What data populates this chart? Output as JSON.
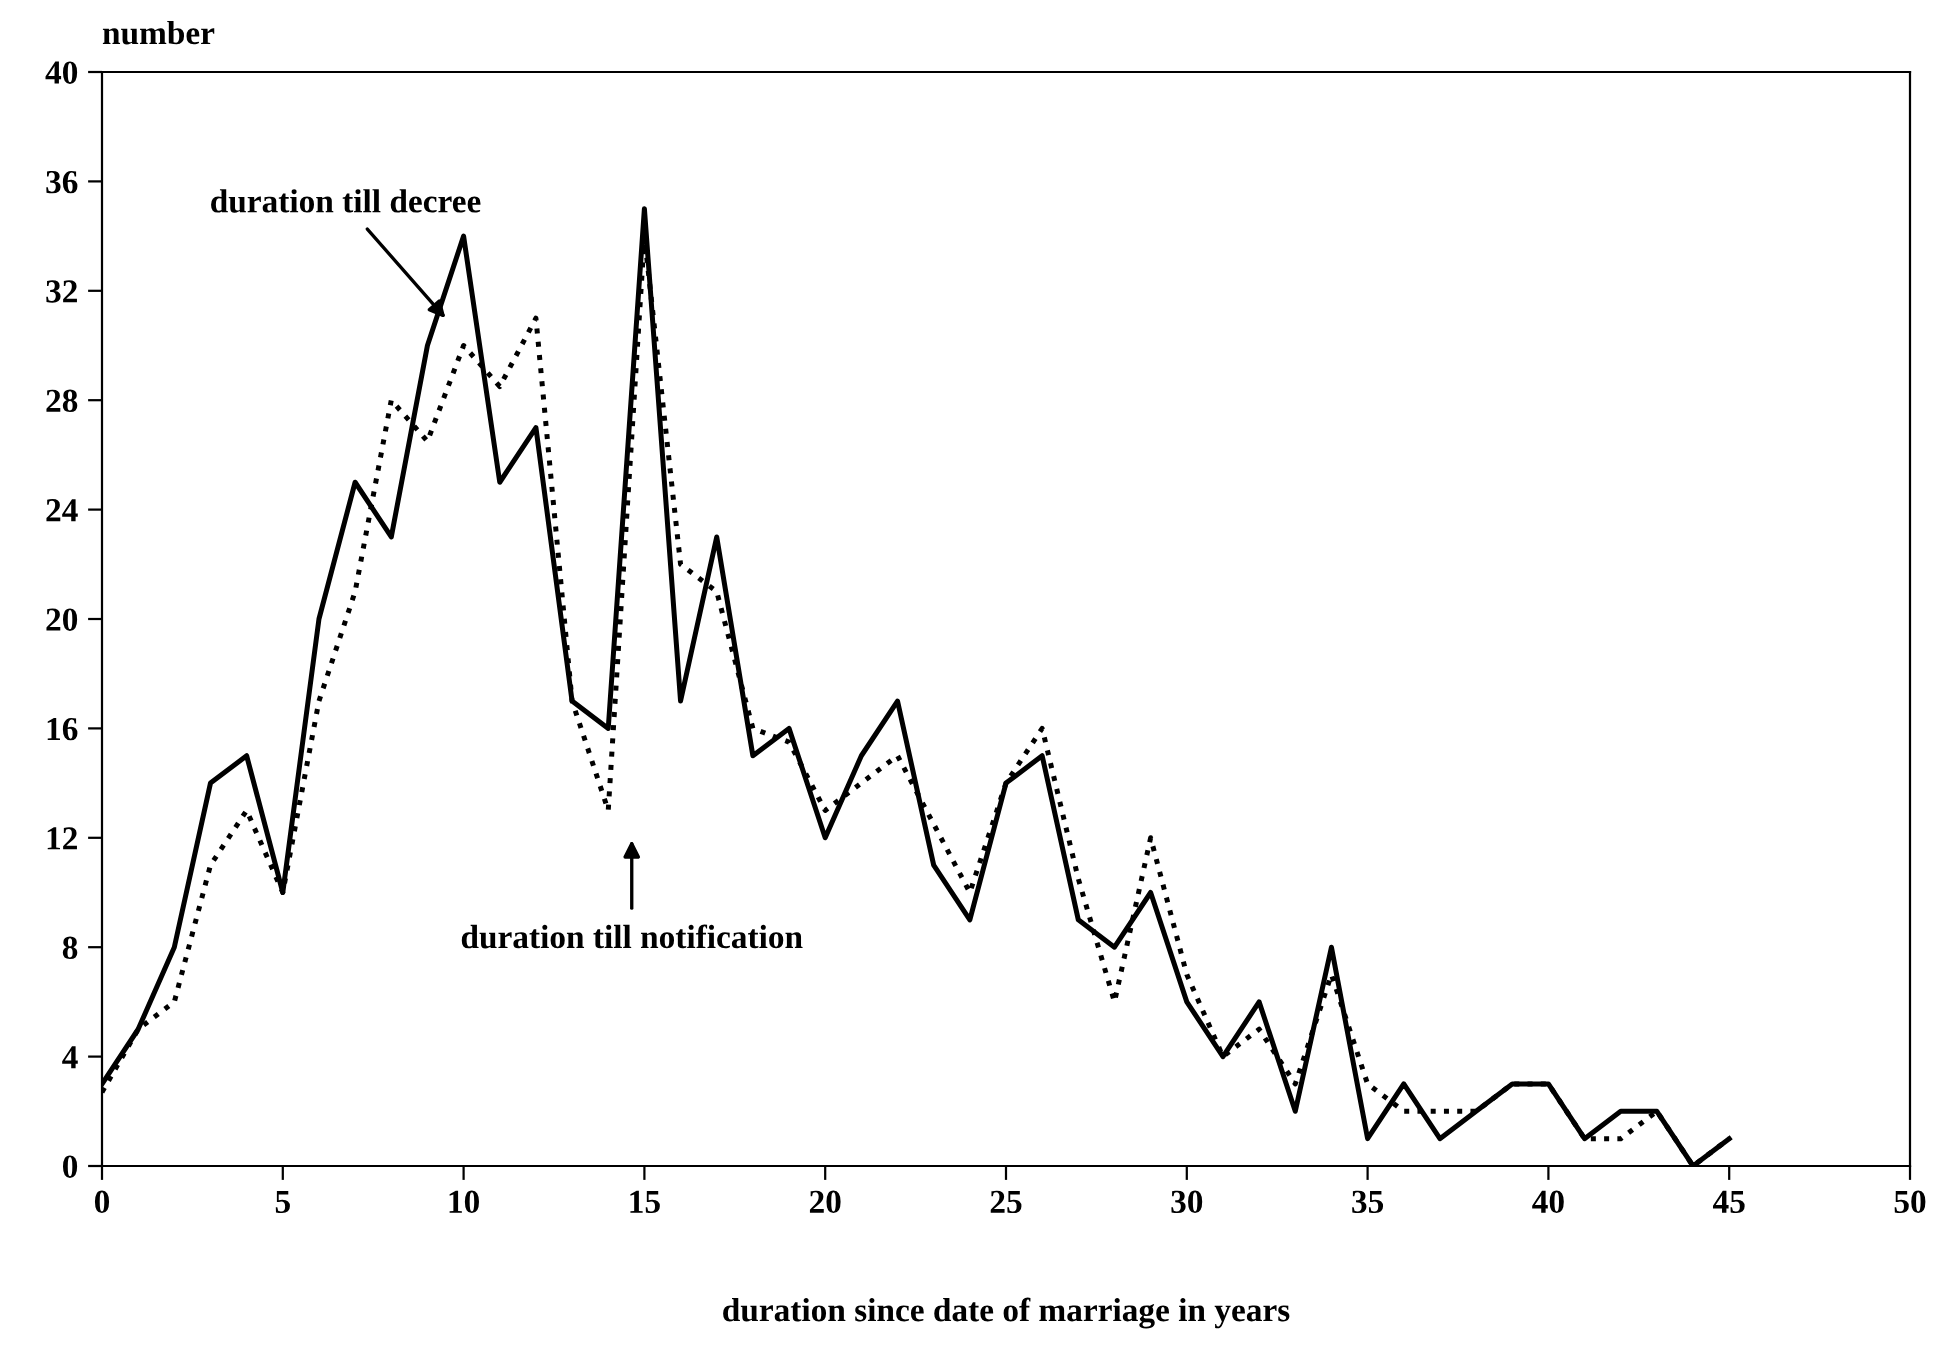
{
  "chart_data": {
    "type": "line",
    "xlabel": "duration since date of marriage in years",
    "ylabel": "number",
    "x": [
      0,
      1,
      2,
      3,
      4,
      5,
      6,
      7,
      8,
      9,
      10,
      11,
      12,
      13,
      14,
      15,
      16,
      17,
      18,
      19,
      20,
      21,
      22,
      23,
      24,
      25,
      26,
      27,
      28,
      29,
      30,
      31,
      32,
      33,
      34,
      35,
      36,
      37,
      38,
      39,
      40,
      41,
      42,
      43,
      44,
      45
    ],
    "series": [
      {
        "color": "#000000",
        "line_style": "solid",
        "values": [
          3,
          5,
          8,
          14,
          15,
          10,
          20,
          25,
          23,
          30,
          34,
          25,
          27,
          17,
          16,
          35,
          17,
          23,
          15,
          16,
          12,
          15,
          17,
          11,
          9,
          14,
          15,
          9,
          8,
          10,
          6,
          4,
          6,
          2,
          8,
          1,
          3,
          1,
          2,
          3,
          3,
          1,
          2,
          2,
          0,
          1
        ]
      },
      {
        "color": "#000000",
        "line_style": "dotted",
        "values": [
          2.7,
          5,
          6,
          11,
          13,
          10,
          17,
          21,
          28,
          26.5,
          30,
          28.5,
          31,
          17,
          13,
          34,
          22,
          21,
          16,
          15.5,
          13,
          14,
          15,
          12.5,
          10,
          14,
          16,
          10.5,
          6,
          12,
          7,
          4,
          5,
          3,
          7,
          3,
          2,
          2,
          2,
          3,
          3,
          1,
          1,
          2,
          0,
          1
        ]
      }
    ],
    "xlim": [
      0,
      50
    ],
    "xticks": [
      0,
      5,
      10,
      15,
      20,
      25,
      30,
      35,
      40,
      45,
      50
    ],
    "ylim": [
      0,
      40
    ],
    "yticks": [
      0,
      4,
      8,
      12,
      16,
      20,
      24,
      28,
      32,
      36,
      40
    ],
    "grid": false,
    "legend": false,
    "annotations": [
      {
        "text": "duration till decree",
        "x": 9.5,
        "y": 31
      },
      "duration till notification"
    ]
  }
}
